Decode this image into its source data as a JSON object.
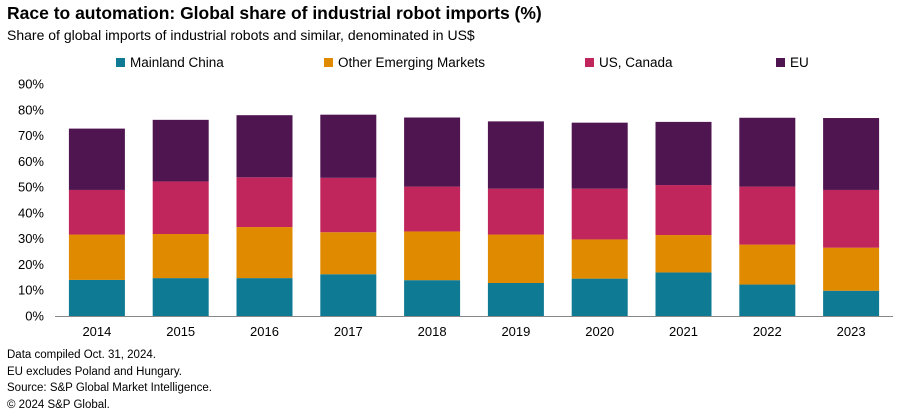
{
  "title": "Race to automation: Global share of industrial robot imports (%)",
  "subtitle": "Share of global imports of industrial robots and similar, denominated in US$",
  "chart_data": {
    "type": "bar",
    "stacked": true,
    "categories": [
      "2014",
      "2015",
      "2016",
      "2017",
      "2018",
      "2019",
      "2020",
      "2021",
      "2022",
      "2023"
    ],
    "series": [
      {
        "name": "Mainland China",
        "color": "#0f7a93",
        "values": [
          14,
          14.7,
          14.7,
          16.2,
          13.9,
          12.8,
          14.5,
          16.9,
          12.2,
          9.8
        ]
      },
      {
        "name": "Other Emerging Markets",
        "color": "#e08a00",
        "values": [
          17.6,
          17.1,
          19.8,
          16.3,
          18.9,
          18.8,
          15.2,
          14.5,
          15.5,
          16.7
        ]
      },
      {
        "name": "US, Canada",
        "color": "#c0255b",
        "values": [
          17.3,
          20.4,
          19.3,
          21.1,
          17.4,
          17.8,
          19.7,
          19.4,
          22.5,
          22.4
        ]
      },
      {
        "name": "EU",
        "color": "#4f1550",
        "values": [
          23.8,
          23.9,
          24.1,
          24.5,
          26.8,
          26.1,
          25.6,
          24.5,
          26.7,
          27.9
        ]
      }
    ],
    "y_ticks": [
      "0%",
      "10%",
      "20%",
      "30%",
      "40%",
      "50%",
      "60%",
      "70%",
      "80%",
      "90%"
    ],
    "ylim": [
      0,
      90
    ],
    "grid": false,
    "legend": "top"
  },
  "notes": [
    "Data compiled Oct. 31, 2024.",
    "EU excludes Poland and Hungary.",
    "Source: S&P Global Market Intelligence.",
    "© 2024 S&P Global."
  ]
}
